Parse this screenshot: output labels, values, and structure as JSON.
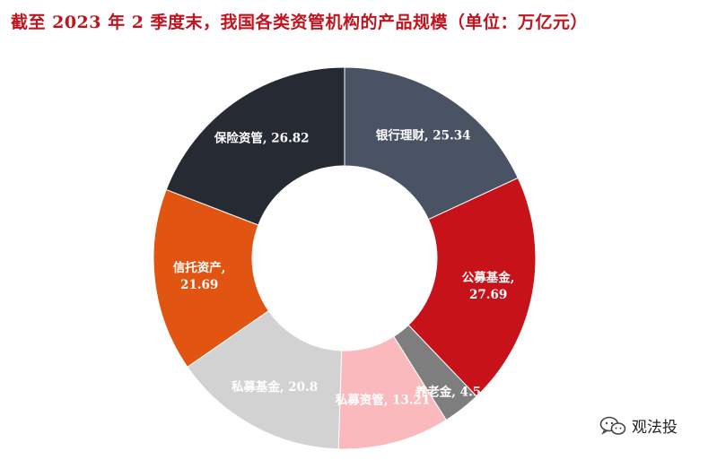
{
  "title": "截至 2023 年 2 季度末，我国各类资管机构的产品规模（单位：万亿元）",
  "colors": {
    "title": "#c0141f",
    "label_light": "#ffffff",
    "label_dark": "#3a2a2a"
  },
  "chart_data": {
    "type": "pie",
    "subtype": "donut",
    "title": "截至 2023 年 2 季度末，我国各类资管机构的产品规模（单位：万亿元）",
    "unit": "万亿元",
    "slices": [
      {
        "name": "银行理财",
        "value": 25.34,
        "label_lines": [
          "银行理财, 25.34"
        ],
        "color": "#4a5363",
        "label_color": "#ffffff"
      },
      {
        "name": "公募基金",
        "value": 27.69,
        "label_lines": [
          "公募基金,",
          "27.69"
        ],
        "color": "#c8121a",
        "label_color": "#ffffff"
      },
      {
        "name": "养老金",
        "value": 4.5,
        "label_lines": [
          "养老金, 4.5"
        ],
        "color": "#7e7e7e",
        "label_color": "#ffffff"
      },
      {
        "name": "私募资管",
        "value": 13.21,
        "label_lines": [
          "私募资管, 13.21"
        ],
        "color": "#f9b9bd",
        "label_color": "#ffffff"
      },
      {
        "name": "私募基金",
        "value": 20.8,
        "label_lines": [
          "私募基金, 20.8"
        ],
        "color": "#d2d2d2",
        "label_color": "#ffffff"
      },
      {
        "name": "信托资产",
        "value": 21.69,
        "label_lines": [
          "信托资产,",
          "21.69"
        ],
        "color": "#e25412",
        "label_color": "#ffffff"
      },
      {
        "name": "保险资管",
        "value": 26.82,
        "label_lines": [
          "保险资管, 26.82"
        ],
        "color": "#262b33",
        "label_color": "#ffffff"
      }
    ],
    "start_angle_deg": 0,
    "direction": "clockwise",
    "legend": "none"
  },
  "watermark": {
    "icon": "wechat-icon",
    "text": "观法投"
  }
}
